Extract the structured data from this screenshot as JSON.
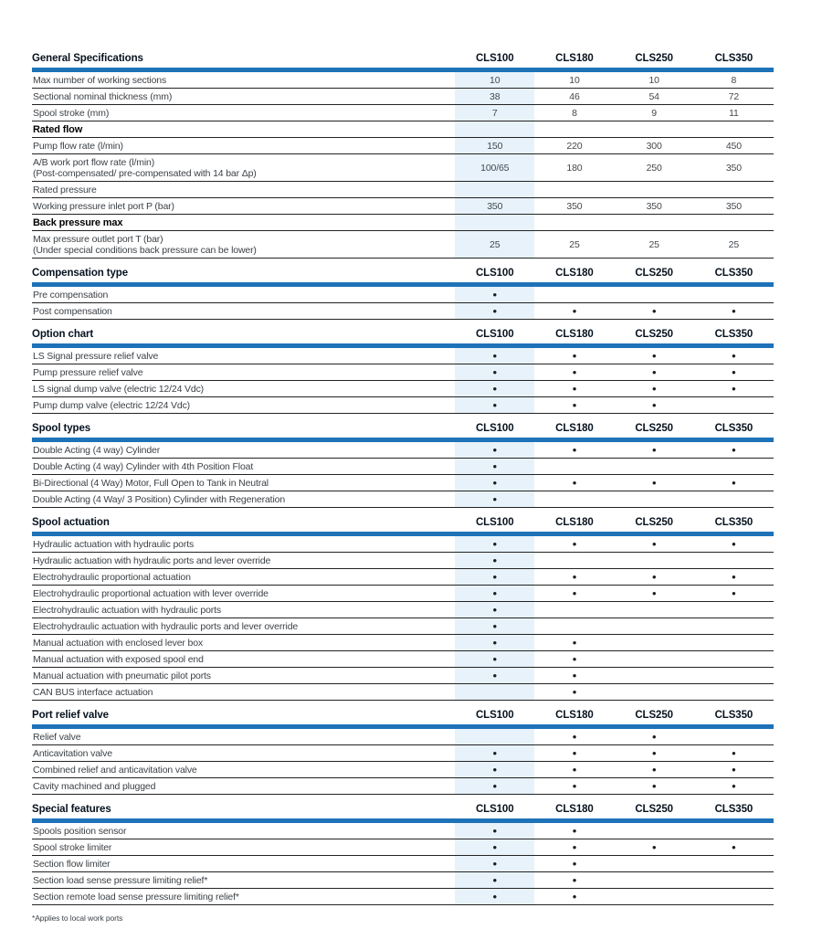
{
  "columns": [
    "CLS100",
    "CLS180",
    "CLS250",
    "CLS350"
  ],
  "bullet_char": "•",
  "footnote": "*Applies to local work ports",
  "colors": {
    "accent_blue": "#1E72B8",
    "column_highlight": "#E7F2FB",
    "row_line": "#232323"
  },
  "sections": [
    {
      "title": "General Specifications",
      "rows": [
        {
          "type": "data",
          "label": "Max number of working sections",
          "values": [
            "10",
            "10",
            "10",
            "8"
          ]
        },
        {
          "type": "data",
          "label": "Sectional nominal thickness (mm)",
          "values": [
            "38",
            "46",
            "54",
            "72"
          ]
        },
        {
          "type": "data",
          "label": "Spool stroke (mm)",
          "values": [
            "7",
            "8",
            "9",
            "11"
          ]
        },
        {
          "type": "subheader",
          "label": "Rated flow",
          "values": [
            "",
            "",
            "",
            ""
          ]
        },
        {
          "type": "data",
          "label": "Pump flow rate (l/min)",
          "values": [
            "150",
            "220",
            "300",
            "450"
          ]
        },
        {
          "type": "data",
          "label": "A/B work port flow rate (l/min)",
          "sublabel": "(Post-compensated/ pre-compensated with 14 bar Δp)",
          "values": [
            "100/65",
            "180",
            "250",
            "350"
          ]
        },
        {
          "type": "plainrow",
          "label": "Rated pressure",
          "values": [
            "",
            "",
            "",
            ""
          ]
        },
        {
          "type": "data",
          "label": "Working pressure inlet port P (bar)",
          "values": [
            "350",
            "350",
            "350",
            "350"
          ]
        },
        {
          "type": "subheader",
          "label": "Back pressure max",
          "values": [
            "",
            "",
            "",
            ""
          ]
        },
        {
          "type": "data",
          "label": "Max pressure outlet port T (bar)",
          "sublabel": "(Under special conditions back pressure can be lower)",
          "values": [
            "25",
            "25",
            "25",
            "25"
          ]
        }
      ]
    },
    {
      "title": "Compensation type",
      "rows": [
        {
          "type": "data",
          "label": "Pre compensation",
          "values": [
            "•",
            "",
            "",
            ""
          ]
        },
        {
          "type": "data",
          "label": "Post compensation",
          "values": [
            "•",
            "•",
            "•",
            "•"
          ]
        }
      ]
    },
    {
      "title": "Option chart",
      "rows": [
        {
          "type": "data",
          "label": "LS Signal pressure relief valve",
          "values": [
            "•",
            "•",
            "•",
            "•"
          ]
        },
        {
          "type": "data",
          "label": "Pump pressure relief valve",
          "values": [
            "•",
            "•",
            "•",
            "•"
          ]
        },
        {
          "type": "data",
          "label": "LS signal dump valve (electric 12/24 Vdc)",
          "values": [
            "•",
            "•",
            "•",
            "•"
          ]
        },
        {
          "type": "data",
          "label": "Pump dump valve (electric 12/24 Vdc)",
          "values": [
            "•",
            "•",
            "•",
            ""
          ]
        }
      ]
    },
    {
      "title": "Spool types",
      "rows": [
        {
          "type": "data",
          "label": "Double Acting (4 way) Cylinder",
          "values": [
            "•",
            "•",
            "•",
            "•"
          ]
        },
        {
          "type": "data",
          "label": "Double Acting (4 way) Cylinder with 4th Position Float",
          "values": [
            "•",
            "",
            "",
            ""
          ]
        },
        {
          "type": "data",
          "label": "Bi-Directional (4 Way) Motor, Full Open to Tank in Neutral",
          "values": [
            "•",
            "•",
            "•",
            "•"
          ]
        },
        {
          "type": "data",
          "label": "Double Acting (4 Way/ 3 Position) Cylinder with Regeneration",
          "values": [
            "•",
            "",
            "",
            ""
          ]
        }
      ]
    },
    {
      "title": "Spool actuation",
      "rows": [
        {
          "type": "data",
          "label": "Hydraulic actuation with hydraulic ports",
          "values": [
            "•",
            "•",
            "•",
            "•"
          ]
        },
        {
          "type": "data",
          "label": "Hydraulic actuation with hydraulic ports and lever override",
          "values": [
            "•",
            "",
            "",
            ""
          ]
        },
        {
          "type": "data",
          "label": "Electrohydraulic proportional actuation",
          "values": [
            "•",
            "•",
            "•",
            "•"
          ]
        },
        {
          "type": "data",
          "label": "Electrohydraulic proportional actuation with lever override",
          "values": [
            "•",
            "•",
            "•",
            "•"
          ]
        },
        {
          "type": "data",
          "label": "Electrohydraulic actuation with hydraulic ports",
          "values": [
            "•",
            "",
            "",
            ""
          ]
        },
        {
          "type": "data",
          "label": "Electrohydraulic actuation with hydraulic ports and lever override",
          "values": [
            "•",
            "",
            "",
            ""
          ]
        },
        {
          "type": "data",
          "label": "Manual actuation with enclosed lever box",
          "values": [
            "•",
            "•",
            "",
            ""
          ]
        },
        {
          "type": "data",
          "label": "Manual actuation with exposed spool end",
          "values": [
            "•",
            "•",
            "",
            ""
          ]
        },
        {
          "type": "data",
          "label": "Manual actuation with pneumatic pilot ports",
          "values": [
            "•",
            "•",
            "",
            ""
          ]
        },
        {
          "type": "data",
          "label": "CAN BUS interface actuation",
          "values": [
            "",
            "•",
            "",
            ""
          ]
        }
      ]
    },
    {
      "title": "Port relief valve",
      "rows": [
        {
          "type": "data",
          "label": "Relief valve",
          "values": [
            "",
            "•",
            "•",
            ""
          ]
        },
        {
          "type": "data",
          "label": "Anticavitation valve",
          "values": [
            "•",
            "•",
            "•",
            "•"
          ]
        },
        {
          "type": "data",
          "label": "Combined relief and anticavitation valve",
          "values": [
            "•",
            "•",
            "•",
            "•"
          ]
        },
        {
          "type": "data",
          "label": "Cavity machined and plugged",
          "values": [
            "•",
            "•",
            "•",
            "•"
          ]
        }
      ]
    },
    {
      "title": "Special features",
      "rows": [
        {
          "type": "data",
          "label": "Spools position sensor",
          "values": [
            "•",
            "•",
            "",
            ""
          ]
        },
        {
          "type": "data",
          "label": "Spool stroke limiter",
          "values": [
            "•",
            "•",
            "•",
            "•"
          ]
        },
        {
          "type": "data",
          "label": "Section flow limiter",
          "values": [
            "•",
            "•",
            "",
            ""
          ]
        },
        {
          "type": "data",
          "label": "Section load sense pressure limiting relief*",
          "values": [
            "•",
            "•",
            "",
            ""
          ]
        },
        {
          "type": "data",
          "label": "Section remote load sense pressure limiting relief*",
          "values": [
            "•",
            "•",
            "",
            ""
          ]
        }
      ]
    }
  ]
}
